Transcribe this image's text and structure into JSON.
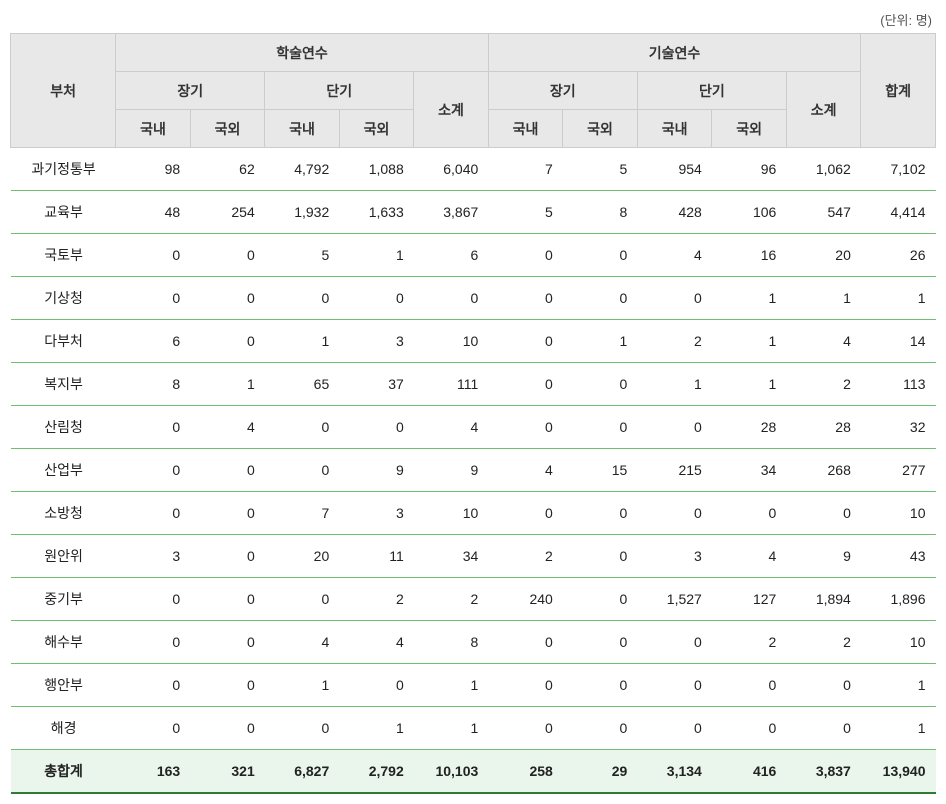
{
  "unit_label": "(단위: 명)",
  "header": {
    "dept": "부처",
    "group_a": "학술연수",
    "group_b": "기술연수",
    "sub_long": "장기",
    "sub_short": "단기",
    "subtotal": "소계",
    "domestic": "국내",
    "overseas": "국외",
    "total": "합계"
  },
  "rows": [
    {
      "dept": "과기정통부",
      "a_l_d": "98",
      "a_l_o": "62",
      "a_s_d": "4,792",
      "a_s_o": "1,088",
      "a_sub": "6,040",
      "b_l_d": "7",
      "b_l_o": "5",
      "b_s_d": "954",
      "b_s_o": "96",
      "b_sub": "1,062",
      "total": "7,102"
    },
    {
      "dept": "교육부",
      "a_l_d": "48",
      "a_l_o": "254",
      "a_s_d": "1,932",
      "a_s_o": "1,633",
      "a_sub": "3,867",
      "b_l_d": "5",
      "b_l_o": "8",
      "b_s_d": "428",
      "b_s_o": "106",
      "b_sub": "547",
      "total": "4,414"
    },
    {
      "dept": "국토부",
      "a_l_d": "0",
      "a_l_o": "0",
      "a_s_d": "5",
      "a_s_o": "1",
      "a_sub": "6",
      "b_l_d": "0",
      "b_l_o": "0",
      "b_s_d": "4",
      "b_s_o": "16",
      "b_sub": "20",
      "total": "26"
    },
    {
      "dept": "기상청",
      "a_l_d": "0",
      "a_l_o": "0",
      "a_s_d": "0",
      "a_s_o": "0",
      "a_sub": "0",
      "b_l_d": "0",
      "b_l_o": "0",
      "b_s_d": "0",
      "b_s_o": "1",
      "b_sub": "1",
      "total": "1"
    },
    {
      "dept": "다부처",
      "a_l_d": "6",
      "a_l_o": "0",
      "a_s_d": "1",
      "a_s_o": "3",
      "a_sub": "10",
      "b_l_d": "0",
      "b_l_o": "1",
      "b_s_d": "2",
      "b_s_o": "1",
      "b_sub": "4",
      "total": "14"
    },
    {
      "dept": "복지부",
      "a_l_d": "8",
      "a_l_o": "1",
      "a_s_d": "65",
      "a_s_o": "37",
      "a_sub": "111",
      "b_l_d": "0",
      "b_l_o": "0",
      "b_s_d": "1",
      "b_s_o": "1",
      "b_sub": "2",
      "total": "113"
    },
    {
      "dept": "산림청",
      "a_l_d": "0",
      "a_l_o": "4",
      "a_s_d": "0",
      "a_s_o": "0",
      "a_sub": "4",
      "b_l_d": "0",
      "b_l_o": "0",
      "b_s_d": "0",
      "b_s_o": "28",
      "b_sub": "28",
      "total": "32"
    },
    {
      "dept": "산업부",
      "a_l_d": "0",
      "a_l_o": "0",
      "a_s_d": "0",
      "a_s_o": "9",
      "a_sub": "9",
      "b_l_d": "4",
      "b_l_o": "15",
      "b_s_d": "215",
      "b_s_o": "34",
      "b_sub": "268",
      "total": "277"
    },
    {
      "dept": "소방청",
      "a_l_d": "0",
      "a_l_o": "0",
      "a_s_d": "7",
      "a_s_o": "3",
      "a_sub": "10",
      "b_l_d": "0",
      "b_l_o": "0",
      "b_s_d": "0",
      "b_s_o": "0",
      "b_sub": "0",
      "total": "10"
    },
    {
      "dept": "원안위",
      "a_l_d": "3",
      "a_l_o": "0",
      "a_s_d": "20",
      "a_s_o": "11",
      "a_sub": "34",
      "b_l_d": "2",
      "b_l_o": "0",
      "b_s_d": "3",
      "b_s_o": "4",
      "b_sub": "9",
      "total": "43"
    },
    {
      "dept": "중기부",
      "a_l_d": "0",
      "a_l_o": "0",
      "a_s_d": "0",
      "a_s_o": "2",
      "a_sub": "2",
      "b_l_d": "240",
      "b_l_o": "0",
      "b_s_d": "1,527",
      "b_s_o": "127",
      "b_sub": "1,894",
      "total": "1,896"
    },
    {
      "dept": "해수부",
      "a_l_d": "0",
      "a_l_o": "0",
      "a_s_d": "4",
      "a_s_o": "4",
      "a_sub": "8",
      "b_l_d": "0",
      "b_l_o": "0",
      "b_s_d": "0",
      "b_s_o": "2",
      "b_sub": "2",
      "total": "10"
    },
    {
      "dept": "행안부",
      "a_l_d": "0",
      "a_l_o": "0",
      "a_s_d": "1",
      "a_s_o": "0",
      "a_sub": "1",
      "b_l_d": "0",
      "b_l_o": "0",
      "b_s_d": "0",
      "b_s_o": "0",
      "b_sub": "0",
      "total": "1"
    },
    {
      "dept": "해경",
      "a_l_d": "0",
      "a_l_o": "0",
      "a_s_d": "0",
      "a_s_o": "1",
      "a_sub": "1",
      "b_l_d": "0",
      "b_l_o": "0",
      "b_s_d": "0",
      "b_s_o": "0",
      "b_sub": "0",
      "total": "1"
    }
  ],
  "total_row": {
    "dept": "총합계",
    "a_l_d": "163",
    "a_l_o": "321",
    "a_s_d": "6,827",
    "a_s_o": "2,792",
    "a_sub": "10,103",
    "b_l_d": "258",
    "b_l_o": "29",
    "b_s_d": "3,134",
    "b_s_o": "416",
    "b_sub": "3,837",
    "total": "13,940"
  },
  "style": {
    "header_bg": "#e8e8e8",
    "row_border": "#6fbf73",
    "total_bg": "#eaf5eb",
    "bottom_border": "#2e7d32",
    "cell_border": "#cccccc",
    "text_color": "#222222",
    "header_text": "#333333",
    "font_size_pt": 14,
    "unit_font_size_pt": 13
  }
}
